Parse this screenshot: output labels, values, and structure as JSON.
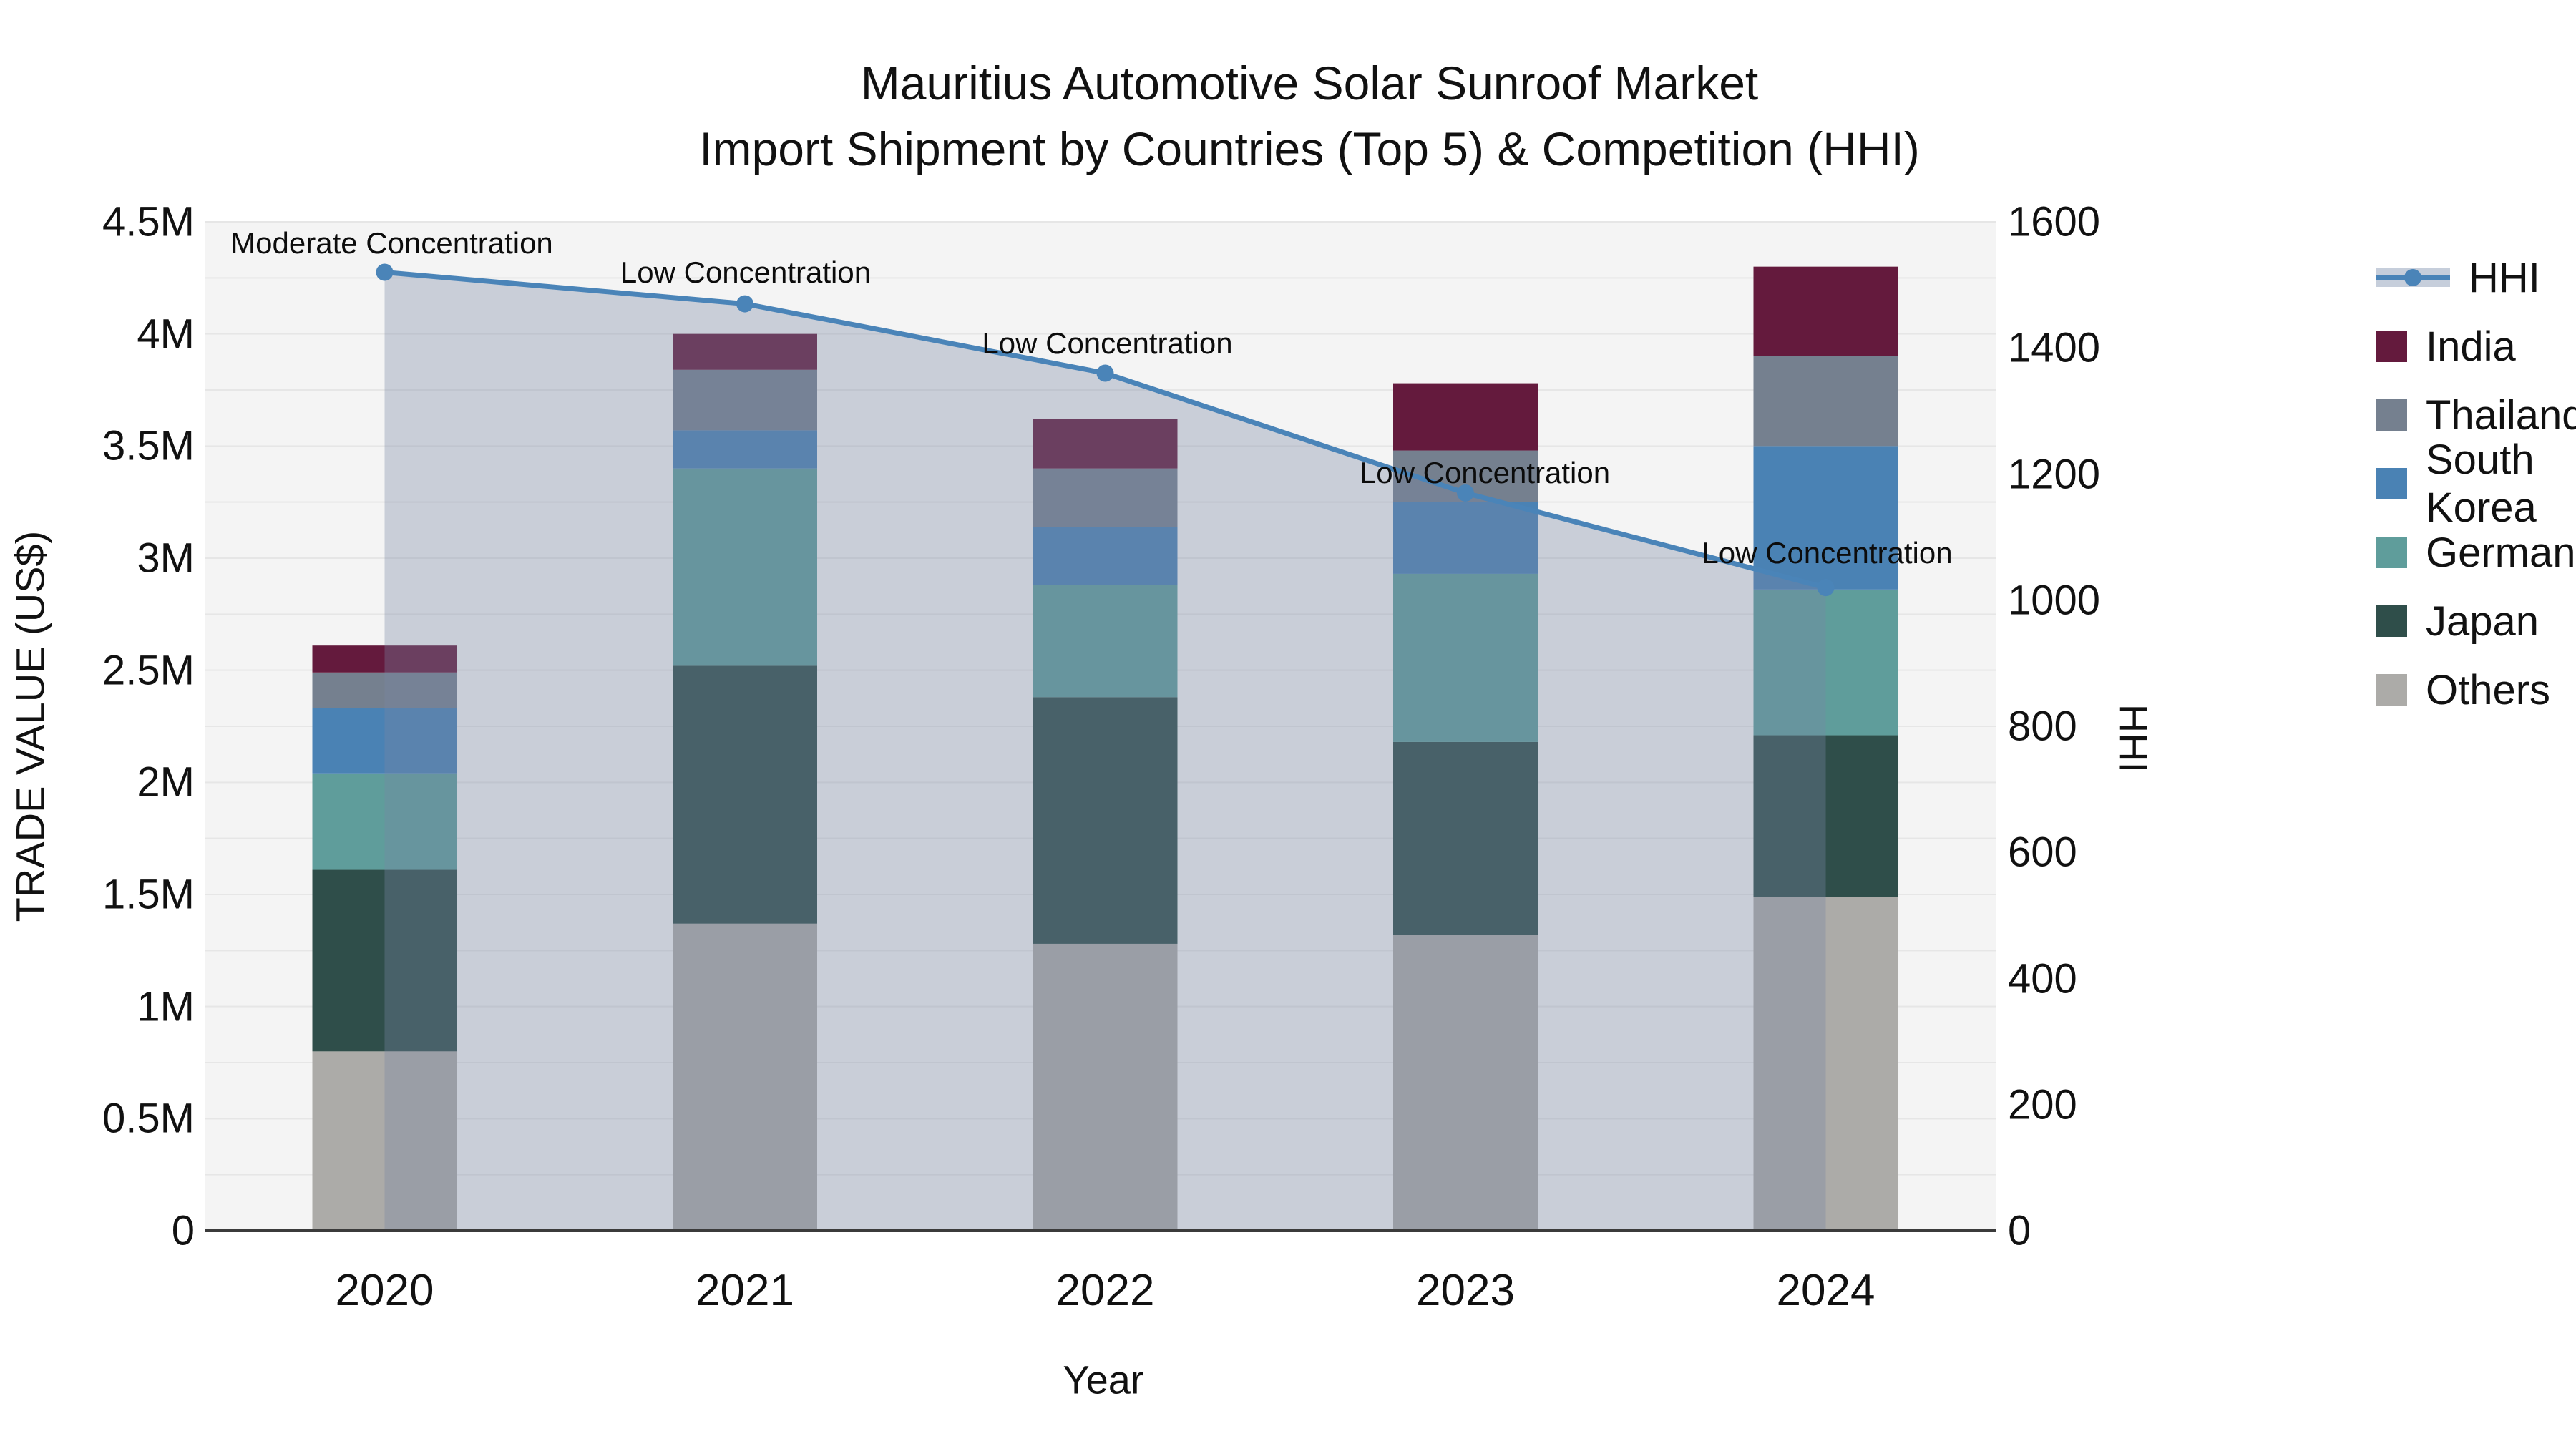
{
  "title": {
    "line1": "Mauritius Automotive Solar Sunroof Market",
    "line2": "Import Shipment by Countries (Top 5) & Competition (HHI)"
  },
  "axes": {
    "left_title": "TRADE VALUE (US$)",
    "bottom_title": "Year",
    "right_title": "HHI",
    "left_ticks": [
      "0",
      "0.5M",
      "1M",
      "1.5M",
      "2M",
      "2.5M",
      "3M",
      "3.5M",
      "4M",
      "4.5M"
    ],
    "right_ticks": [
      "0",
      "200",
      "400",
      "600",
      "800",
      "1000",
      "1200",
      "1400",
      "1600"
    ]
  },
  "legend": {
    "line_item_label": "HHI"
  },
  "colors": {
    "plot_bg": "#f4f4f4",
    "gridline": "#e6e6e6",
    "axis_line": "#3b3b3b",
    "hhi_line": "#4a84b8",
    "hhi_area_fill": "rgba(119,134,162,0.35)",
    "text": "#111111"
  },
  "chart_data": {
    "type": "bar",
    "subtype": "stacked-bar-with-line",
    "title": "Mauritius Automotive Solar Sunroof Market — Import Shipment by Countries (Top 5) & Competition (HHI)",
    "xlabel": "Year",
    "ylabel": "TRADE VALUE (US$)",
    "y2label": "HHI",
    "categories": [
      "2020",
      "2021",
      "2022",
      "2023",
      "2024"
    ],
    "values_unit": "millions of US$",
    "ylim_millions": [
      0,
      4.5
    ],
    "y2lim": [
      0,
      1600
    ],
    "grid": "on",
    "legend_position": "right",
    "series": [
      {
        "name": "India",
        "color": "#641a3d",
        "values": [
          0.12,
          0.16,
          0.22,
          0.3,
          0.4
        ]
      },
      {
        "name": "Thailand",
        "color": "#75808f",
        "values": [
          0.16,
          0.27,
          0.26,
          0.23,
          0.4
        ]
      },
      {
        "name": "South Korea",
        "color": "#4a82b4",
        "values": [
          0.29,
          0.17,
          0.26,
          0.32,
          0.64
        ]
      },
      {
        "name": "Germany",
        "color": "#5f9d9b",
        "values": [
          0.43,
          0.88,
          0.5,
          0.75,
          0.65
        ]
      },
      {
        "name": "Japan",
        "color": "#2f4e4a",
        "values": [
          0.81,
          1.15,
          1.1,
          0.86,
          0.72
        ]
      },
      {
        "name": "Others",
        "color": "#acaba8",
        "values": [
          0.8,
          1.37,
          1.28,
          1.32,
          1.49
        ]
      }
    ],
    "stack_totals_millions": [
      2.61,
      4.0,
      3.62,
      3.78,
      4.3
    ],
    "line_series": {
      "name": "HHI",
      "axis": "right",
      "color": "#4a84b8",
      "values": [
        1520,
        1470,
        1360,
        1170,
        1020
      ]
    },
    "annotations": [
      {
        "category": "2020",
        "text": "Moderate Concentration"
      },
      {
        "category": "2021",
        "text": "Low Concentration"
      },
      {
        "category": "2022",
        "text": "Low Concentration"
      },
      {
        "category": "2023",
        "text": "Low Concentration"
      },
      {
        "category": "2024",
        "text": "Low Concentration"
      }
    ]
  }
}
